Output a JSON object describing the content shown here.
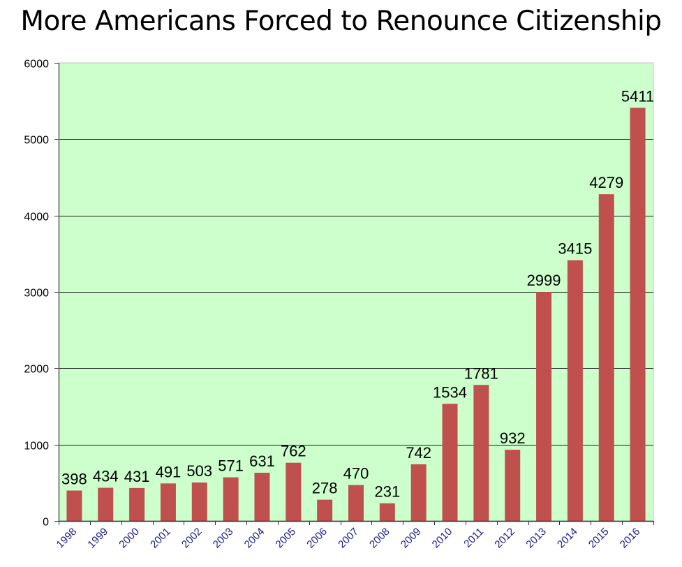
{
  "chart_data": {
    "type": "bar",
    "title": "More Americans Forced to Renounce Citizenship",
    "xlabel": "",
    "ylabel": "",
    "categories": [
      "1998",
      "1999",
      "2000",
      "2001",
      "2002",
      "2003",
      "2004",
      "2005",
      "2006",
      "2007",
      "2008",
      "2009",
      "2010",
      "2011",
      "2012",
      "2013",
      "2014",
      "2015",
      "2016"
    ],
    "values": [
      398,
      434,
      431,
      491,
      503,
      571,
      631,
      762,
      278,
      470,
      231,
      742,
      1534,
      1781,
      932,
      2999,
      3415,
      4279,
      5411
    ],
    "ylim": [
      0,
      6000
    ],
    "yticks": [
      0,
      1000,
      2000,
      3000,
      4000,
      5000,
      6000
    ],
    "grid": true,
    "legend": "none",
    "data_labels": true,
    "colors": {
      "bar": "#c0504d",
      "plot_background": "#ccffcc",
      "x_tick_text": "#1a1a8c",
      "gridline": "#000000"
    }
  }
}
